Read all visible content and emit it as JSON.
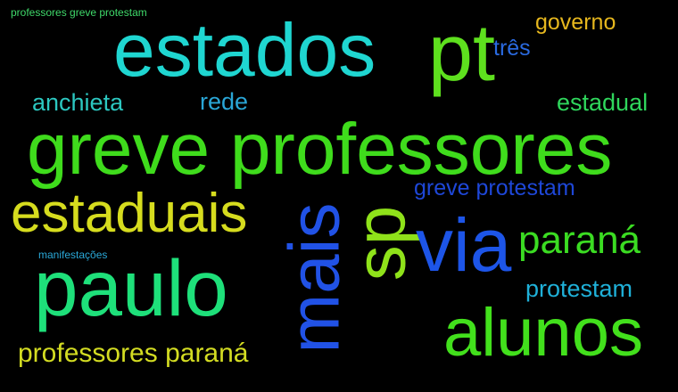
{
  "words": [
    {
      "text": "professores greve protestam",
      "color": "#3fd96a"
    },
    {
      "text": "governo",
      "color": "#e6b71e"
    },
    {
      "text": "estados",
      "color": "#1fd6d1"
    },
    {
      "text": "pt",
      "color": "#5ee01e"
    },
    {
      "text": "três",
      "color": "#2a6ae0"
    },
    {
      "text": "anchieta",
      "color": "#2cc7c0"
    },
    {
      "text": "rede",
      "color": "#2aa6d6"
    },
    {
      "text": "estadual",
      "color": "#2fd65c"
    },
    {
      "text": "greve professores",
      "color": "#3fdc1c"
    },
    {
      "text": "greve protestam",
      "color": "#1e47d8"
    },
    {
      "text": "estaduais",
      "color": "#d6dc1e"
    },
    {
      "text": "mais",
      "color": "#2152e6"
    },
    {
      "text": "sp",
      "color": "#8fe21a"
    },
    {
      "text": "via",
      "color": "#1d55e8"
    },
    {
      "text": "paraná",
      "color": "#3bdc22"
    },
    {
      "text": "manifestações",
      "color": "#2aa8d8"
    },
    {
      "text": "paulo",
      "color": "#1ee07a"
    },
    {
      "text": "protestam",
      "color": "#1fb0d8"
    },
    {
      "text": "alunos",
      "color": "#42e01c"
    },
    {
      "text": "professores paraná",
      "color": "#d3dc22"
    }
  ]
}
